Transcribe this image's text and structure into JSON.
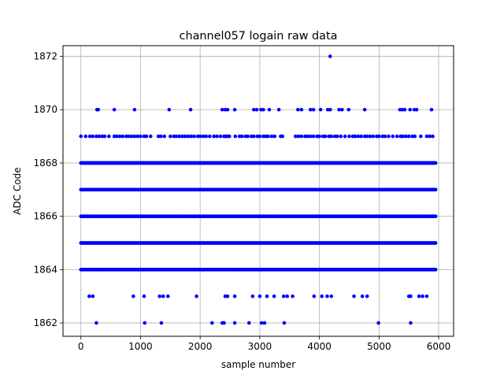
{
  "chart_data": {
    "type": "scatter",
    "title": "channel057 logain raw data",
    "xlabel": "sample number",
    "ylabel": "ADC Code",
    "xlim": [
      -300,
      6250
    ],
    "ylim": [
      1861.5,
      1872.4
    ],
    "xticks": [
      0,
      1000,
      2000,
      3000,
      4000,
      5000,
      6000
    ],
    "yticks": [
      1862,
      1864,
      1866,
      1868,
      1870,
      1872
    ],
    "grid": true,
    "marker_color": "#0000ff",
    "series": [
      {
        "dense_levels": [
          1864,
          1865,
          1866,
          1867,
          1868
        ],
        "dense_x_range": [
          0,
          5950
        ],
        "points": [
          {
            "y": 1869,
            "x": [
              0,
              80,
              150,
              200,
              260,
              310,
              360,
              400,
              470,
              560,
              600,
              650,
              700,
              760,
              800,
              850,
              900,
              950,
              1000,
              1060,
              1100,
              1170,
              1300,
              1340,
              1400,
              1500,
              1560,
              1600,
              1650,
              1700,
              1750,
              1800,
              1850,
              1900,
              1960,
              2000,
              2050,
              2100,
              2160,
              2230,
              2280,
              2340,
              2400,
              2430,
              2460,
              2490,
              2590,
              2660,
              2700,
              2760,
              2800,
              2860,
              2900,
              2960,
              3000,
              3060,
              3100,
              3140,
              3200,
              3250,
              3350,
              3380,
              3600,
              3650,
              3700,
              3760,
              3800,
              3850,
              3900,
              3960,
              4000,
              4060,
              4100,
              4160,
              4200,
              4260,
              4300,
              4360,
              4430,
              4500,
              4560,
              4600,
              4650,
              4700,
              4760,
              4800,
              4850,
              4900,
              4960,
              5000,
              5060,
              5100,
              5160,
              5230,
              5300,
              5360,
              5400,
              5450,
              5500,
              5560,
              5600,
              5700,
              5800,
              5850,
              5900
            ]
          },
          {
            "y": 1870,
            "x": [
              270,
              290,
              560,
              900,
              1480,
              1840,
              2370,
              2420,
              2460,
              2580,
              2900,
              2950,
              3020,
              3060,
              3160,
              3320,
              3640,
              3700,
              3850,
              3900,
              4020,
              4140,
              4180,
              4330,
              4380,
              4490,
              4760,
              5350,
              5390,
              5430,
              5520,
              5590,
              5630,
              5880
            ]
          },
          {
            "y": 1863,
            "x": [
              140,
              200,
              880,
              1060,
              1320,
              1380,
              1460,
              1940,
              2420,
              2460,
              2580,
              2880,
              3000,
              3120,
              3240,
              3400,
              3460,
              3550,
              3910,
              4040,
              4130,
              4200,
              4580,
              4720,
              4800,
              5500,
              5530,
              5670,
              5730,
              5800
            ]
          },
          {
            "y": 1862,
            "x": [
              260,
              1070,
              1350,
              2200,
              2370,
              2400,
              2580,
              2820,
              3030,
              3080,
              3410,
              4990,
              5530
            ]
          },
          {
            "y": 1872,
            "x": [
              4180
            ]
          }
        ]
      }
    ]
  }
}
